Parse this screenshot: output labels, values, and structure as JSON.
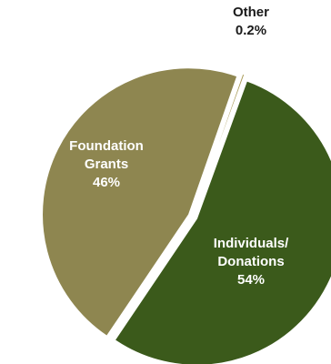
{
  "chart_data": {
    "type": "pie",
    "slices": [
      {
        "name": "Individuals/ Donations",
        "label_lines": [
          "Individuals/",
          "Donations"
        ],
        "value_label": "54%",
        "value": 54,
        "color": "#3b5a1b",
        "label_color": "#ffffff"
      },
      {
        "name": "Foundation Grants",
        "label_lines": [
          "Foundation",
          "Grants"
        ],
        "value_label": "46%",
        "value": 46,
        "color": "#8e8650",
        "label_color": "#ffffff"
      },
      {
        "name": "Other",
        "label_lines": [
          "Other"
        ],
        "value_label": "0.2%",
        "value": 0.2,
        "color": "#a89a56",
        "label_color": "#1a1a1a"
      }
    ],
    "legend": false
  }
}
